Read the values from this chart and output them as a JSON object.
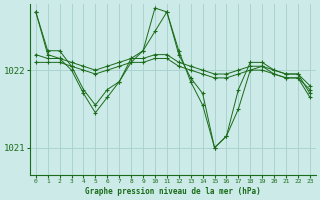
{
  "background_color": "#cceae7",
  "grid_color": "#aad4d0",
  "line_color": "#1a6b1a",
  "xlabel": "Graphe pression niveau de la mer (hPa)",
  "xlim": [
    -0.5,
    23.5
  ],
  "ylim": [
    1020.65,
    1022.85
  ],
  "yticks": [
    1021,
    1022
  ],
  "xticks": [
    0,
    1,
    2,
    3,
    4,
    5,
    6,
    7,
    8,
    9,
    10,
    11,
    12,
    13,
    14,
    15,
    16,
    17,
    18,
    19,
    20,
    21,
    22,
    23
  ],
  "series": [
    {
      "x": [
        0,
        1,
        2,
        3,
        4,
        5,
        6,
        7,
        8,
        9,
        10,
        11,
        12,
        13,
        14,
        15,
        16,
        17,
        18,
        19,
        20,
        21,
        22,
        23
      ],
      "y": [
        1022.75,
        1022.25,
        1022.25,
        1022.05,
        1021.75,
        1021.55,
        1021.75,
        1021.85,
        1022.15,
        1022.25,
        1022.5,
        1022.75,
        1022.2,
        1021.9,
        1021.7,
        1021.0,
        1021.15,
        1021.75,
        1022.1,
        1022.1,
        1022.0,
        1021.95,
        1021.95,
        1021.7
      ]
    },
    {
      "x": [
        0,
        1,
        2,
        3,
        4,
        5,
        6,
        7,
        8,
        9,
        10,
        11,
        12,
        13,
        14,
        15,
        16,
        17,
        18,
        19,
        20,
        21,
        22,
        23
      ],
      "y": [
        1022.2,
        1022.15,
        1022.15,
        1022.1,
        1022.05,
        1022.0,
        1022.05,
        1022.1,
        1022.15,
        1022.15,
        1022.2,
        1022.2,
        1022.1,
        1022.05,
        1022.0,
        1021.95,
        1021.95,
        1022.0,
        1022.05,
        1022.05,
        1022.0,
        1021.95,
        1021.95,
        1021.8
      ]
    },
    {
      "x": [
        0,
        1,
        2,
        3,
        4,
        5,
        6,
        7,
        8,
        9,
        10,
        11,
        12,
        13,
        14,
        15,
        16,
        17,
        18,
        19,
        20,
        21,
        22,
        23
      ],
      "y": [
        1022.1,
        1022.1,
        1022.1,
        1022.05,
        1022.0,
        1021.95,
        1022.0,
        1022.05,
        1022.1,
        1022.1,
        1022.15,
        1022.15,
        1022.05,
        1022.0,
        1021.95,
        1021.9,
        1021.9,
        1021.95,
        1022.0,
        1022.0,
        1021.95,
        1021.9,
        1021.9,
        1021.75
      ]
    },
    {
      "x": [
        0,
        1,
        2,
        3,
        4,
        5,
        6,
        7,
        8,
        9,
        10,
        11,
        12,
        13,
        14,
        15,
        16,
        17,
        18,
        19,
        20,
        21,
        22,
        23
      ],
      "y": [
        1022.75,
        1022.2,
        1022.15,
        1022.0,
        1021.7,
        1021.45,
        1021.65,
        1021.85,
        1022.1,
        1022.25,
        1022.8,
        1022.75,
        1022.25,
        1021.85,
        1021.55,
        1021.0,
        1021.15,
        1021.5,
        1022.0,
        1022.05,
        1021.95,
        1021.9,
        1021.9,
        1021.65
      ]
    }
  ]
}
